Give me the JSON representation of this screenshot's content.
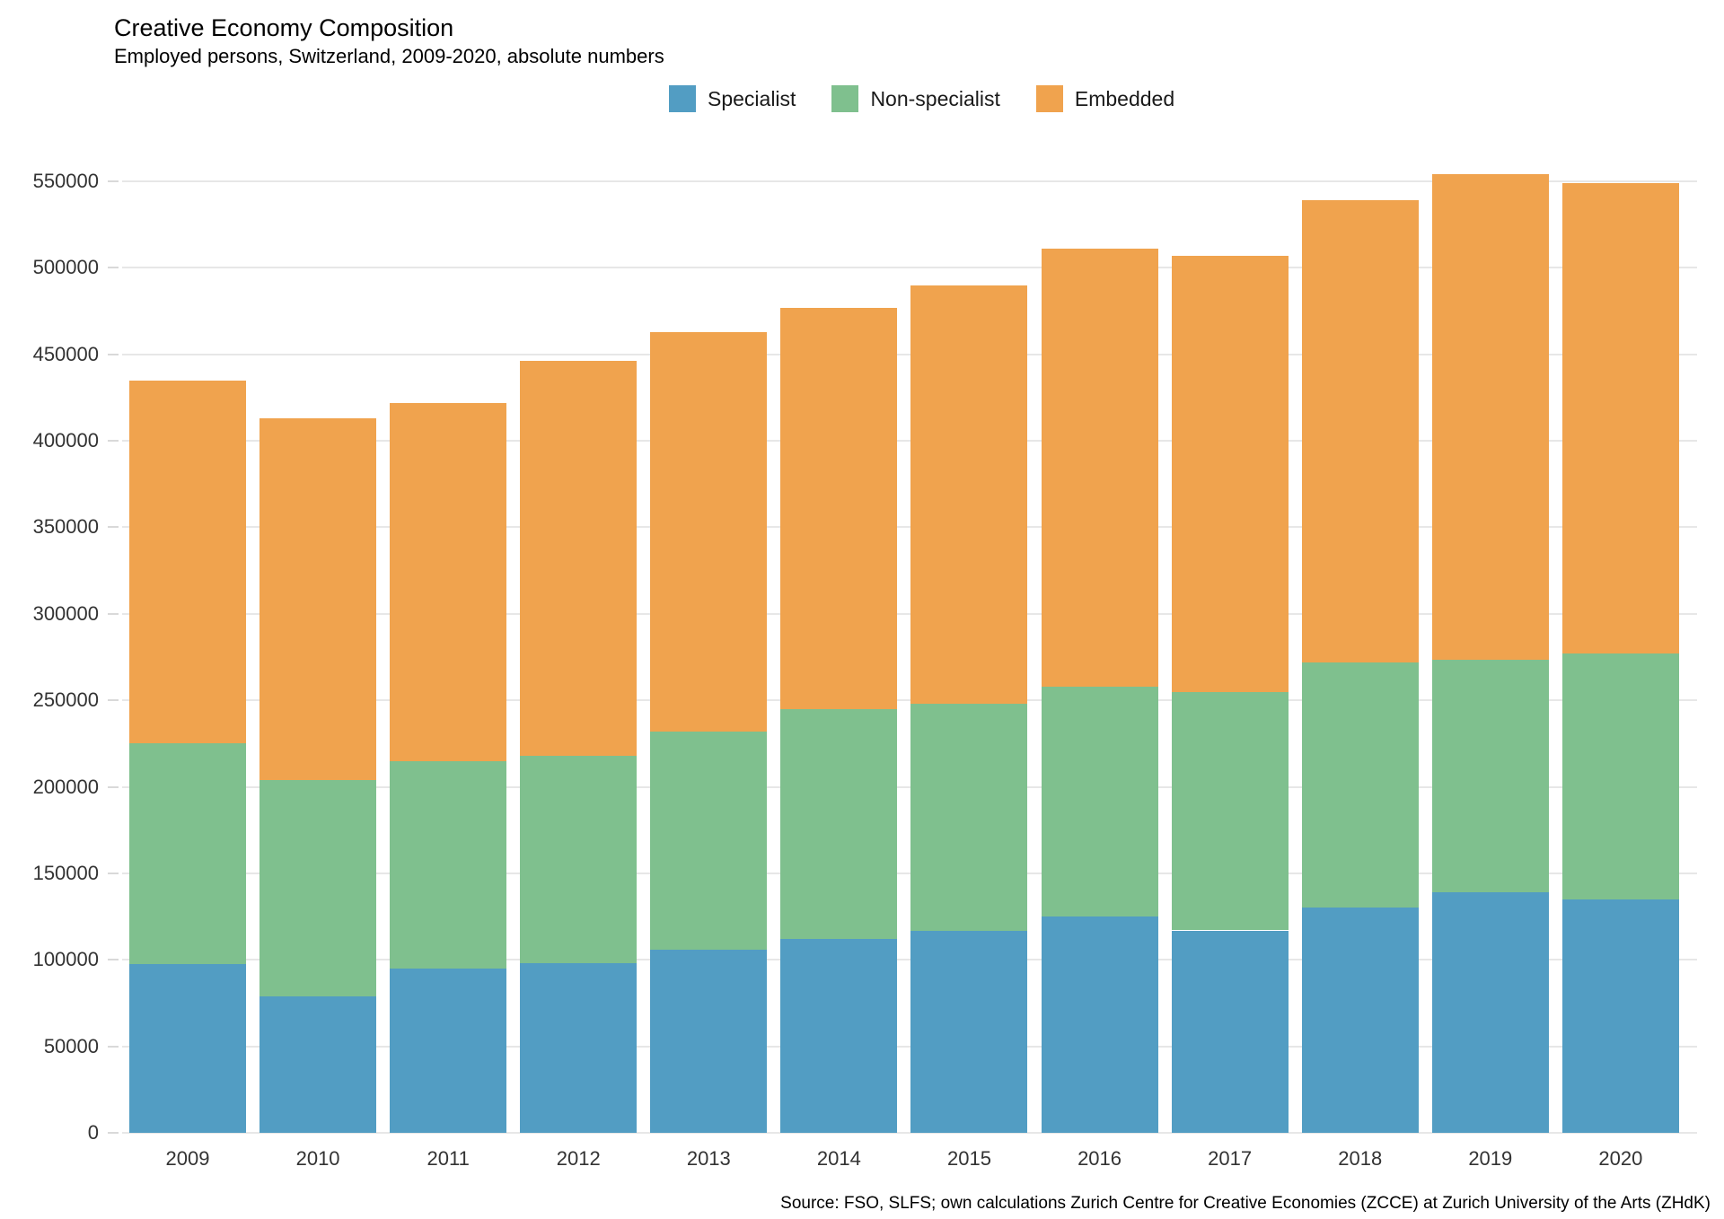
{
  "title": "Creative Economy Composition",
  "subtitle": "Employed persons, Switzerland, 2009-2020, absolute numbers",
  "source": "Source: FSO, SLFS; own calculations Zurich Centre for Creative Economies (ZCCE) at Zurich University of the Arts (ZHdK)",
  "colors": {
    "specialist": "#529DC3",
    "non_specialist": "#7FC08E",
    "embedded": "#F0A34E",
    "gridline": "#E7E7E7",
    "tick": "#D9D9D9",
    "axis_text": "#333333",
    "text": "#000000",
    "background": "#FFFFFF"
  },
  "chart_data": {
    "type": "bar",
    "stacked": true,
    "title": "Creative Economy Composition",
    "subtitle": "Employed persons, Switzerland, 2009-2020, absolute numbers",
    "xlabel": "",
    "ylabel": "",
    "categories": [
      "2009",
      "2010",
      "2011",
      "2012",
      "2013",
      "2014",
      "2015",
      "2016",
      "2017",
      "2018",
      "2019",
      "2020"
    ],
    "series": [
      {
        "name": "Specialist",
        "color": "#529DC3",
        "values": [
          97500,
          79000,
          95000,
          98000,
          106000,
          112000,
          117000,
          125000,
          117000,
          130000,
          139000,
          135000
        ]
      },
      {
        "name": "Non-specialist",
        "color": "#7FC08E",
        "values": [
          127500,
          125000,
          120000,
          120000,
          126000,
          133000,
          131000,
          133000,
          138000,
          142000,
          134500,
          142000
        ]
      },
      {
        "name": "Embedded",
        "color": "#F0A34E",
        "values": [
          210000,
          209000,
          207000,
          228000,
          231000,
          232000,
          242000,
          253000,
          252000,
          267000,
          280500,
          272000
        ]
      }
    ],
    "totals": [
      435000,
      413000,
      422000,
      446000,
      463000,
      477000,
      490000,
      511000,
      507000,
      539000,
      554000,
      549000
    ],
    "ylim": [
      0,
      550000
    ],
    "ytick_step": 50000,
    "yticks": [
      0,
      50000,
      100000,
      150000,
      200000,
      250000,
      300000,
      350000,
      400000,
      450000,
      500000,
      550000
    ],
    "grid": "horizontal",
    "legend_position": "top-center",
    "legend_entries": [
      "Specialist",
      "Non-specialist",
      "Embedded"
    ]
  }
}
